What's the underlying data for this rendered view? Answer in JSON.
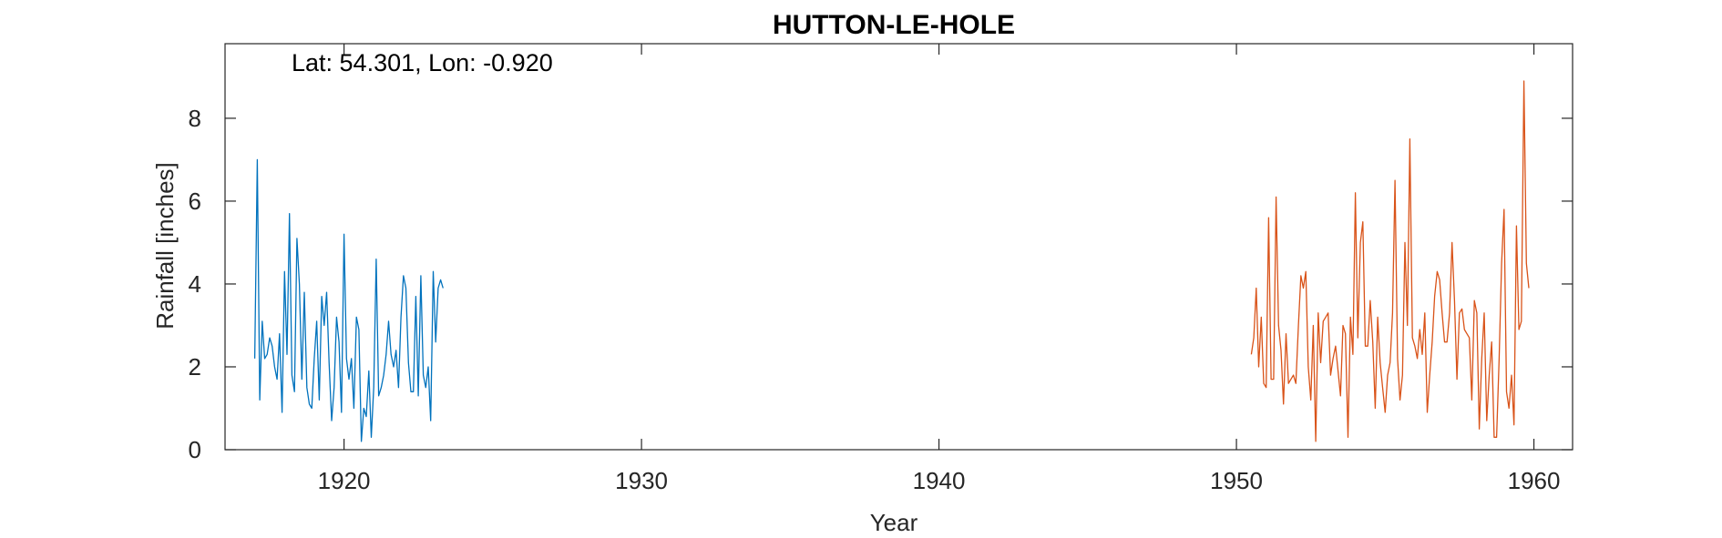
{
  "chart_data": {
    "type": "line",
    "title": "HUTTON-LE-HOLE",
    "xlabel": "Year",
    "ylabel": "Rainfall [inches]",
    "annotation": "Lat: 54.301, Lon: -0.920",
    "xlim": [
      1916,
      1961.3
    ],
    "ylim": [
      0,
      9.8
    ],
    "xticks": [
      1920,
      1930,
      1940,
      1950,
      1960
    ],
    "yticks": [
      0,
      2,
      4,
      6,
      8
    ],
    "grid": false,
    "colors": {
      "series1": "#0072BD",
      "series2": "#D95319",
      "axis": "#262626"
    },
    "series": [
      {
        "start": 1917.0,
        "step": 0.0833,
        "values": [
          2.2,
          7.0,
          1.2,
          3.1,
          2.2,
          2.3,
          2.7,
          2.5,
          2.0,
          1.7,
          2.8,
          0.9,
          4.3,
          2.3,
          5.7,
          1.8,
          1.4,
          5.1,
          4.0,
          1.7,
          3.8,
          1.5,
          1.1,
          1.0,
          2.2,
          3.1,
          1.2,
          3.7,
          3.0,
          3.8,
          2.1,
          0.7,
          1.5,
          3.2,
          2.6,
          0.9,
          5.2,
          2.2,
          1.7,
          2.2,
          1.0,
          3.2,
          2.9,
          0.2,
          1.0,
          0.8,
          1.9,
          0.3,
          1.5,
          4.6,
          1.3,
          1.5,
          1.8,
          2.3,
          3.1,
          2.3,
          2.0,
          2.4,
          1.5,
          3.2,
          4.2,
          3.9,
          2.1,
          1.4,
          1.4,
          3.7,
          1.3,
          4.2,
          1.8,
          1.5,
          2.0,
          0.7,
          4.3,
          2.6,
          3.9,
          4.1,
          3.9
        ]
      },
      {
        "start": 1950.5,
        "step": 0.0833,
        "values": [
          2.3,
          2.7,
          3.9,
          2.0,
          3.2,
          1.6,
          1.5,
          5.6,
          1.7,
          1.7,
          6.1,
          3.0,
          2.4,
          1.1,
          2.8,
          1.6,
          1.7,
          1.8,
          1.6,
          3.0,
          4.2,
          3.9,
          4.3,
          2.0,
          1.2,
          3.0,
          0.2,
          3.3,
          2.1,
          3.1,
          3.2,
          3.3,
          1.8,
          2.2,
          2.5,
          1.9,
          1.3,
          3.0,
          2.8,
          0.3,
          3.2,
          2.3,
          6.2,
          2.7,
          5.0,
          5.5,
          2.5,
          2.5,
          3.6,
          2.6,
          1.0,
          3.2,
          2.1,
          1.5,
          0.9,
          1.8,
          2.1,
          3.3,
          6.5,
          2.2,
          1.2,
          1.8,
          5.0,
          3.0,
          7.5,
          2.7,
          2.5,
          2.2,
          2.9,
          2.3,
          3.3,
          0.9,
          1.8,
          2.6,
          3.7,
          4.3,
          4.1,
          3.3,
          2.6,
          2.6,
          3.3,
          5.0,
          3.6,
          1.7,
          3.3,
          3.4,
          2.9,
          2.8,
          2.7,
          1.2,
          3.6,
          3.3,
          0.5,
          2.2,
          3.3,
          0.7,
          1.8,
          2.6,
          0.3,
          0.3,
          2.2,
          4.5,
          5.8,
          1.4,
          1.0,
          1.8,
          0.6,
          5.4,
          2.9,
          3.1,
          8.9,
          4.5,
          3.9
        ]
      }
    ]
  }
}
